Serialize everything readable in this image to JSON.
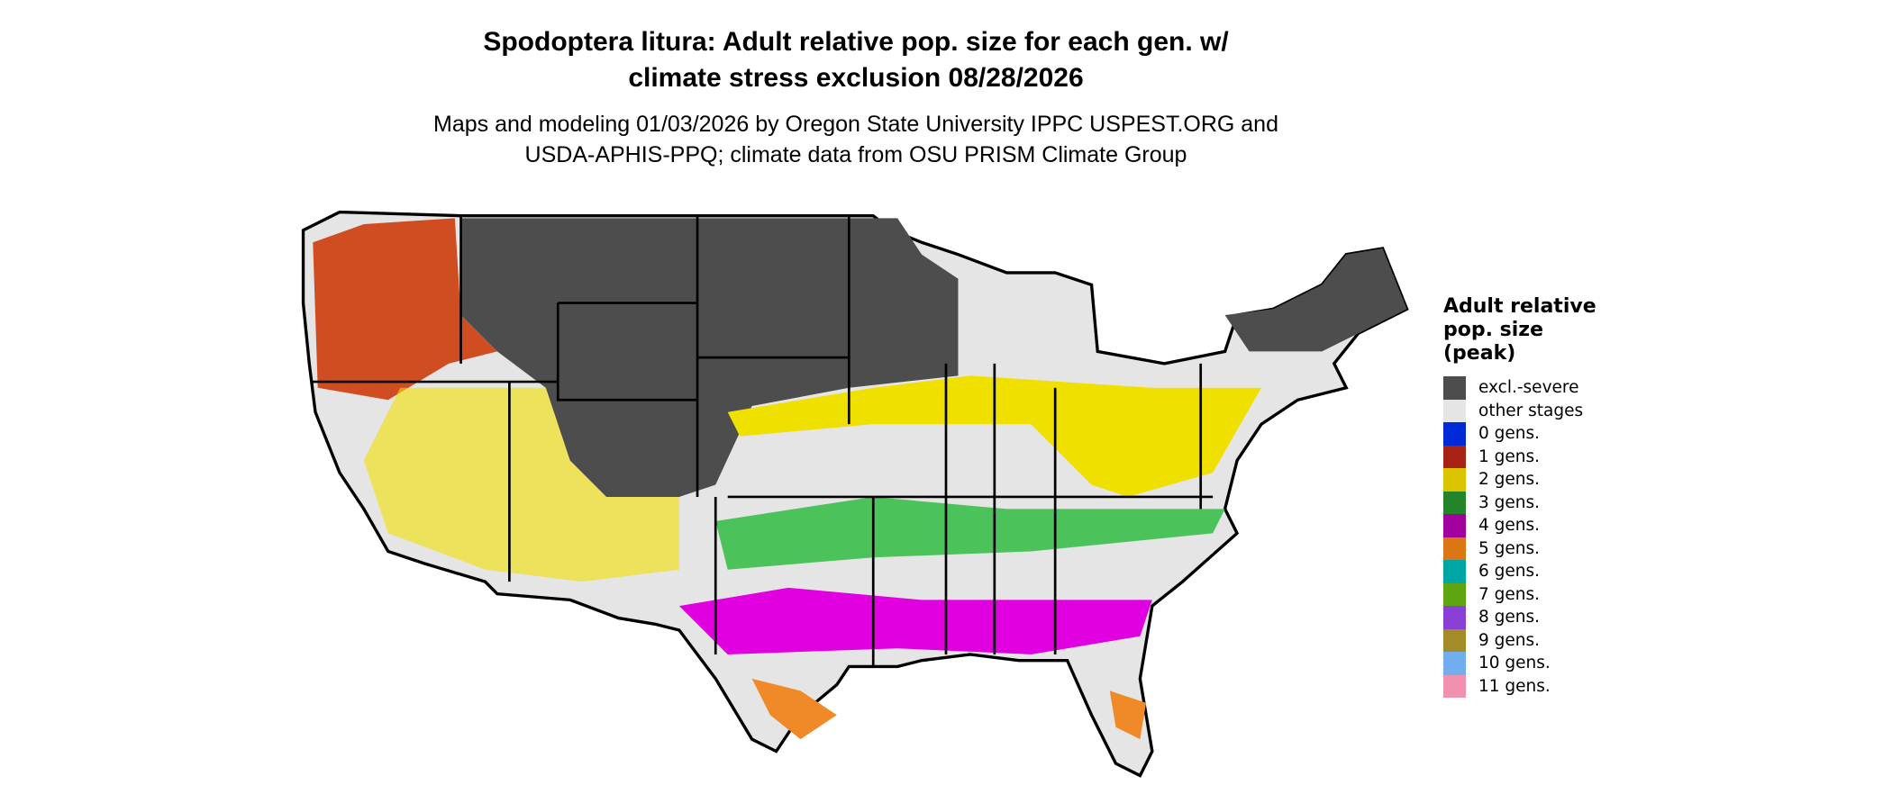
{
  "title_lines": [
    "Spodoptera litura: Adult relative pop. size for each gen. w/",
    "climate stress exclusion 08/28/2026"
  ],
  "subtitle_lines": [
    "Maps and modeling 01/03/2026 by Oregon State University IPPC USPEST.ORG and",
    "USDA-APHIS-PPQ; climate data from OSU PRISM Climate Group"
  ],
  "legend": {
    "title_lines": [
      "Adult relative",
      "pop. size",
      "(peak)"
    ],
    "items": [
      {
        "label": "excl.-severe",
        "color": "#4d4d4d"
      },
      {
        "label": "other stages",
        "color": "#e5e5e5"
      },
      {
        "label": "0 gens.",
        "color": "#0029d8"
      },
      {
        "label": "1 gens.",
        "color": "#a82313"
      },
      {
        "label": "2 gens.",
        "color": "#dcc300"
      },
      {
        "label": "3 gens.",
        "color": "#24842a"
      },
      {
        "label": "4 gens.",
        "color": "#a3019f"
      },
      {
        "label": "5 gens.",
        "color": "#dc7513"
      },
      {
        "label": "6 gens.",
        "color": "#00a6a6"
      },
      {
        "label": "7 gens.",
        "color": "#5ea50f"
      },
      {
        "label": "8 gens.",
        "color": "#8a3fd6"
      },
      {
        "label": "9 gens.",
        "color": "#a38b28"
      },
      {
        "label": "10 gens.",
        "color": "#72aeef"
      },
      {
        "label": "11 gens.",
        "color": "#f091ae"
      }
    ]
  }
}
